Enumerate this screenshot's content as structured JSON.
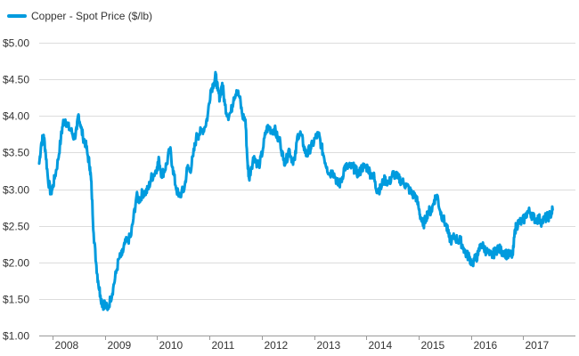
{
  "chart_data": {
    "type": "line",
    "title": "",
    "xlabel": "",
    "ylabel": "",
    "ylim": [
      1.0,
      5.0
    ],
    "xlim": [
      "2007-10-01",
      "2017-12-31"
    ],
    "grid": true,
    "legend_position": "top-left",
    "y_ticks": [
      "$1.00",
      "$1.50",
      "$2.00",
      "$2.50",
      "$3.00",
      "$3.50",
      "$4.00",
      "$4.50",
      "$5.00"
    ],
    "x_ticks": [
      "2008",
      "2009",
      "2010",
      "2011",
      "2012",
      "2013",
      "2014",
      "2015",
      "2016",
      "2017"
    ],
    "colors": {
      "series": "#009bde",
      "grid": "#dcdcdc",
      "axis": "#9a9a9a"
    },
    "series": [
      {
        "name": "Copper - Spot Price ($/lb)",
        "x": [
          "2007-10-01",
          "2007-10-15",
          "2007-11-01",
          "2007-11-15",
          "2007-12-01",
          "2007-12-20",
          "2008-01-01",
          "2008-01-20",
          "2008-02-10",
          "2008-03-01",
          "2008-03-15",
          "2008-04-01",
          "2008-04-20",
          "2008-05-10",
          "2008-06-01",
          "2008-06-20",
          "2008-07-01",
          "2008-07-15",
          "2008-08-01",
          "2008-08-20",
          "2008-09-05",
          "2008-09-20",
          "2008-10-01",
          "2008-10-15",
          "2008-11-01",
          "2008-11-15",
          "2008-12-01",
          "2008-12-20",
          "2009-01-01",
          "2009-01-20",
          "2009-02-10",
          "2009-03-01",
          "2009-03-20",
          "2009-04-10",
          "2009-05-01",
          "2009-05-20",
          "2009-06-10",
          "2009-07-01",
          "2009-07-20",
          "2009-08-10",
          "2009-09-01",
          "2009-09-20",
          "2009-10-10",
          "2009-11-01",
          "2009-11-20",
          "2009-12-10",
          "2010-01-01",
          "2010-01-15",
          "2010-02-01",
          "2010-02-20",
          "2010-03-10",
          "2010-04-01",
          "2010-04-20",
          "2010-05-10",
          "2010-06-01",
          "2010-06-20",
          "2010-07-10",
          "2010-08-01",
          "2010-08-20",
          "2010-09-10",
          "2010-10-01",
          "2010-10-20",
          "2010-11-10",
          "2010-12-01",
          "2010-12-20",
          "2011-01-10",
          "2011-02-01",
          "2011-02-15",
          "2011-03-01",
          "2011-03-15",
          "2011-04-01",
          "2011-04-20",
          "2011-05-10",
          "2011-06-01",
          "2011-06-20",
          "2011-07-10",
          "2011-08-01",
          "2011-08-20",
          "2011-09-10",
          "2011-09-25",
          "2011-10-05",
          "2011-10-20",
          "2011-11-10",
          "2011-12-01",
          "2011-12-20",
          "2012-01-10",
          "2012-02-01",
          "2012-02-20",
          "2012-03-10",
          "2012-04-01",
          "2012-04-20",
          "2012-05-10",
          "2012-06-01",
          "2012-06-20",
          "2012-07-10",
          "2012-08-01",
          "2012-08-20",
          "2012-09-10",
          "2012-10-01",
          "2012-10-20",
          "2012-11-10",
          "2012-12-01",
          "2012-12-20",
          "2013-01-10",
          "2013-02-01",
          "2013-02-20",
          "2013-03-10",
          "2013-04-01",
          "2013-04-20",
          "2013-05-10",
          "2013-06-01",
          "2013-06-20",
          "2013-07-10",
          "2013-08-01",
          "2013-08-20",
          "2013-09-10",
          "2013-10-01",
          "2013-10-20",
          "2013-11-10",
          "2013-12-01",
          "2013-12-20",
          "2014-01-10",
          "2014-02-01",
          "2014-02-20",
          "2014-03-10",
          "2014-03-25",
          "2014-04-10",
          "2014-05-01",
          "2014-05-20",
          "2014-06-10",
          "2014-07-01",
          "2014-07-20",
          "2014-08-10",
          "2014-09-01",
          "2014-09-20",
          "2014-10-10",
          "2014-11-01",
          "2014-11-20",
          "2014-12-10",
          "2015-01-01",
          "2015-01-15",
          "2015-02-01",
          "2015-02-20",
          "2015-03-10",
          "2015-04-01",
          "2015-04-20",
          "2015-05-10",
          "2015-06-01",
          "2015-06-20",
          "2015-07-10",
          "2015-08-01",
          "2015-08-20",
          "2015-09-10",
          "2015-10-01",
          "2015-10-20",
          "2015-11-10",
          "2015-12-01",
          "2015-12-20",
          "2016-01-10",
          "2016-02-01",
          "2016-02-20",
          "2016-03-10",
          "2016-04-01",
          "2016-04-20",
          "2016-05-10",
          "2016-06-01",
          "2016-06-20",
          "2016-07-10",
          "2016-08-01",
          "2016-08-20",
          "2016-09-10",
          "2016-10-01",
          "2016-10-20",
          "2016-11-05",
          "2016-11-15",
          "2016-12-01",
          "2016-12-20",
          "2017-01-10",
          "2017-02-01",
          "2017-02-20",
          "2017-03-10",
          "2017-04-01",
          "2017-04-20",
          "2017-05-10",
          "2017-06-01",
          "2017-06-20",
          "2017-07-10",
          "2017-07-25"
        ],
        "values": [
          3.35,
          3.62,
          3.74,
          3.5,
          3.15,
          2.95,
          3.0,
          3.18,
          3.4,
          3.7,
          3.9,
          3.95,
          3.85,
          3.8,
          3.7,
          3.82,
          4.02,
          3.88,
          3.72,
          3.62,
          3.45,
          3.3,
          3.0,
          2.4,
          2.0,
          1.75,
          1.55,
          1.4,
          1.45,
          1.35,
          1.5,
          1.65,
          1.85,
          2.05,
          2.1,
          2.25,
          2.3,
          2.35,
          2.6,
          2.9,
          2.85,
          2.95,
          2.95,
          3.0,
          3.15,
          3.2,
          3.3,
          3.4,
          3.2,
          3.25,
          3.35,
          3.55,
          3.3,
          3.05,
          2.9,
          2.95,
          3.0,
          3.3,
          3.25,
          3.45,
          3.7,
          3.75,
          3.8,
          3.85,
          4.0,
          4.35,
          4.45,
          4.55,
          4.35,
          4.25,
          4.45,
          4.15,
          4.0,
          4.05,
          4.25,
          4.35,
          4.25,
          4.0,
          3.95,
          3.35,
          3.15,
          3.3,
          3.45,
          3.35,
          3.35,
          3.55,
          3.8,
          3.85,
          3.8,
          3.82,
          3.7,
          3.65,
          3.4,
          3.38,
          3.55,
          3.4,
          3.4,
          3.75,
          3.75,
          3.6,
          3.45,
          3.55,
          3.6,
          3.7,
          3.75,
          3.6,
          3.45,
          3.3,
          3.2,
          3.25,
          3.15,
          3.05,
          3.1,
          3.3,
          3.3,
          3.3,
          3.3,
          3.25,
          3.2,
          3.3,
          3.3,
          3.3,
          3.2,
          3.2,
          3.0,
          3.0,
          3.0,
          3.12,
          3.12,
          3.08,
          3.2,
          3.2,
          3.15,
          3.12,
          3.08,
          3.05,
          2.98,
          2.92,
          2.92,
          2.75,
          2.62,
          2.5,
          2.6,
          2.7,
          2.7,
          2.85,
          2.92,
          2.7,
          2.6,
          2.52,
          2.35,
          2.3,
          2.35,
          2.3,
          2.3,
          2.2,
          2.1,
          2.08,
          1.98,
          2.05,
          2.1,
          2.25,
          2.2,
          2.15,
          2.1,
          2.1,
          2.15,
          2.2,
          2.15,
          2.15,
          2.1,
          2.1,
          2.1,
          2.45,
          2.5,
          2.55,
          2.55,
          2.6,
          2.7,
          2.68,
          2.62,
          2.58,
          2.6,
          2.55,
          2.6,
          2.62,
          2.65,
          2.72
        ]
      }
    ]
  }
}
